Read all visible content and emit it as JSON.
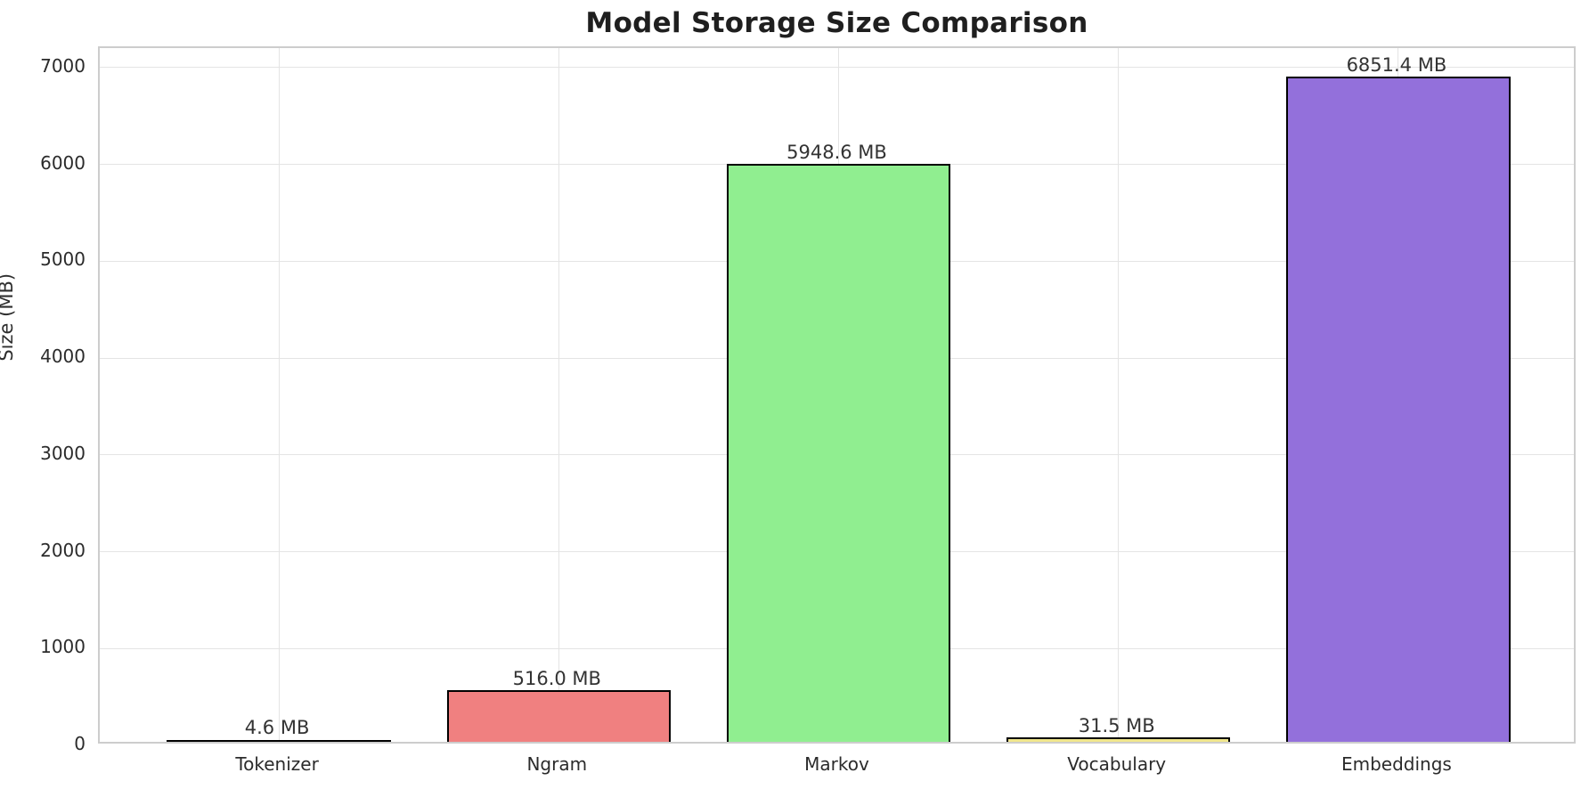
{
  "chart_data": {
    "type": "bar",
    "title": "Model Storage Size Comparison",
    "ylabel": "Size (MB)",
    "xlabel": "",
    "categories": [
      "Tokenizer",
      "Ngram",
      "Markov",
      "Vocabulary",
      "Embeddings"
    ],
    "values": [
      4.6,
      516.0,
      5948.6,
      31.5,
      6851.4
    ],
    "bar_labels": [
      "4.6 MB",
      "516.0 MB",
      "5948.6 MB",
      "31.5 MB",
      "6851.4 MB"
    ],
    "bar_colors": [
      "#87CEEB",
      "#F08080",
      "#90EE90",
      "#F0E68C",
      "#9370DB"
    ],
    "bar_edge_color": "#000000",
    "yticks": [
      0,
      1000,
      2000,
      3000,
      4000,
      5000,
      6000,
      7000
    ],
    "ylim": [
      0,
      7200
    ],
    "grid": true,
    "legend_position": "none",
    "colors": {
      "background": "#ffffff",
      "gridline": "#e4e4e4",
      "spine": "#cdcdcd",
      "title_text": "#1f1f1f",
      "tick_text": "#2b2b2b",
      "value_text": "#333333"
    }
  }
}
